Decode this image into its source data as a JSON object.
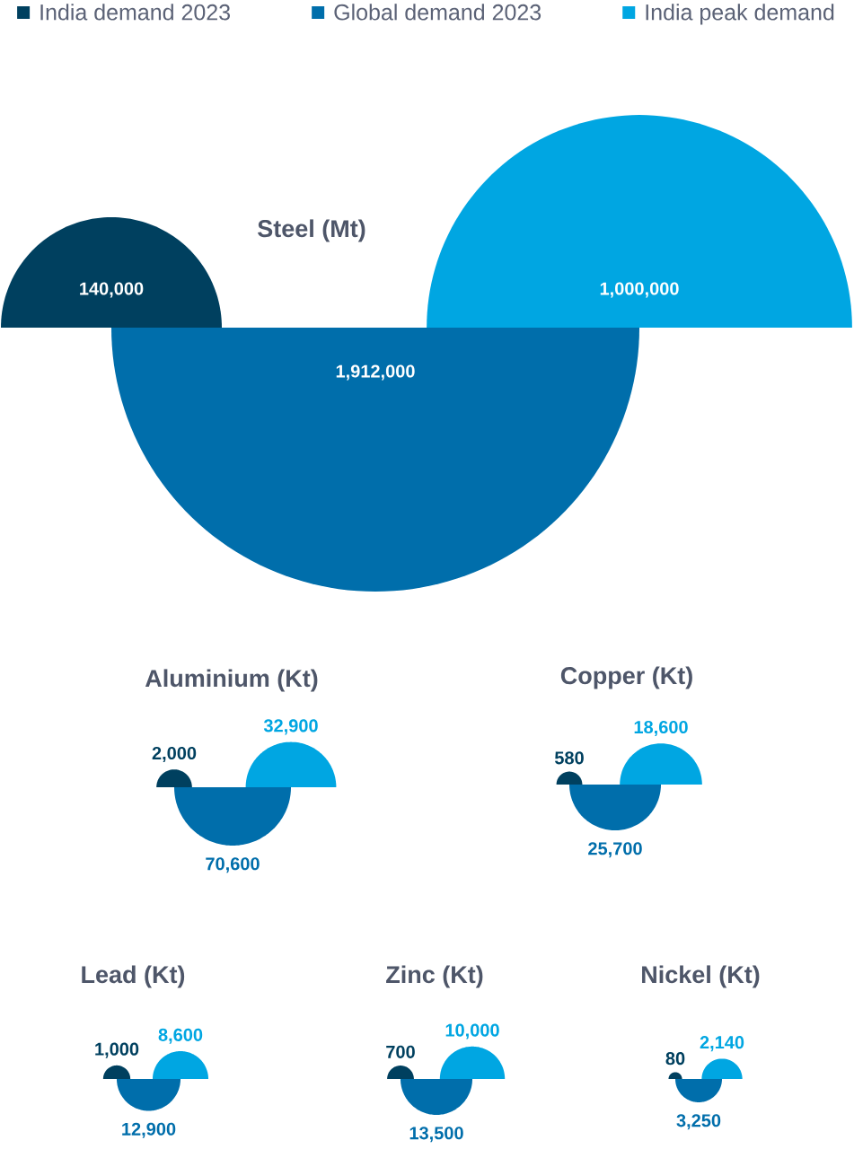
{
  "chart_data": {
    "type": "other",
    "categories": [
      "Steel (Mt)",
      "Aluminium (Kt)",
      "Copper (Kt)",
      "Lead (Kt)",
      "Zinc (Kt)",
      "Nickel (Kt)"
    ],
    "series": [
      {
        "name": "India demand 2023",
        "color": "#00405f",
        "values": [
          140000,
          2000,
          580,
          1000,
          700,
          80
        ],
        "value_labels": [
          "140,000",
          "2,000",
          "580",
          "1,000",
          "700",
          "80"
        ]
      },
      {
        "name": "Global demand 2023",
        "color": "#006eab",
        "values": [
          1912000,
          70600,
          25700,
          12900,
          13500,
          3250
        ],
        "value_labels": [
          "1,912,000",
          "70,600",
          "25,700",
          "12,900",
          "13,500",
          "3,250"
        ]
      },
      {
        "name": "India peak demand",
        "color": "#00a6e2",
        "values": [
          1000000,
          32900,
          18600,
          8600,
          10000,
          2140
        ],
        "value_labels": [
          "1,000,000",
          "32,900",
          "18,600",
          "8,600",
          "10,000",
          "2,140"
        ]
      }
    ],
    "legend": "top"
  }
}
